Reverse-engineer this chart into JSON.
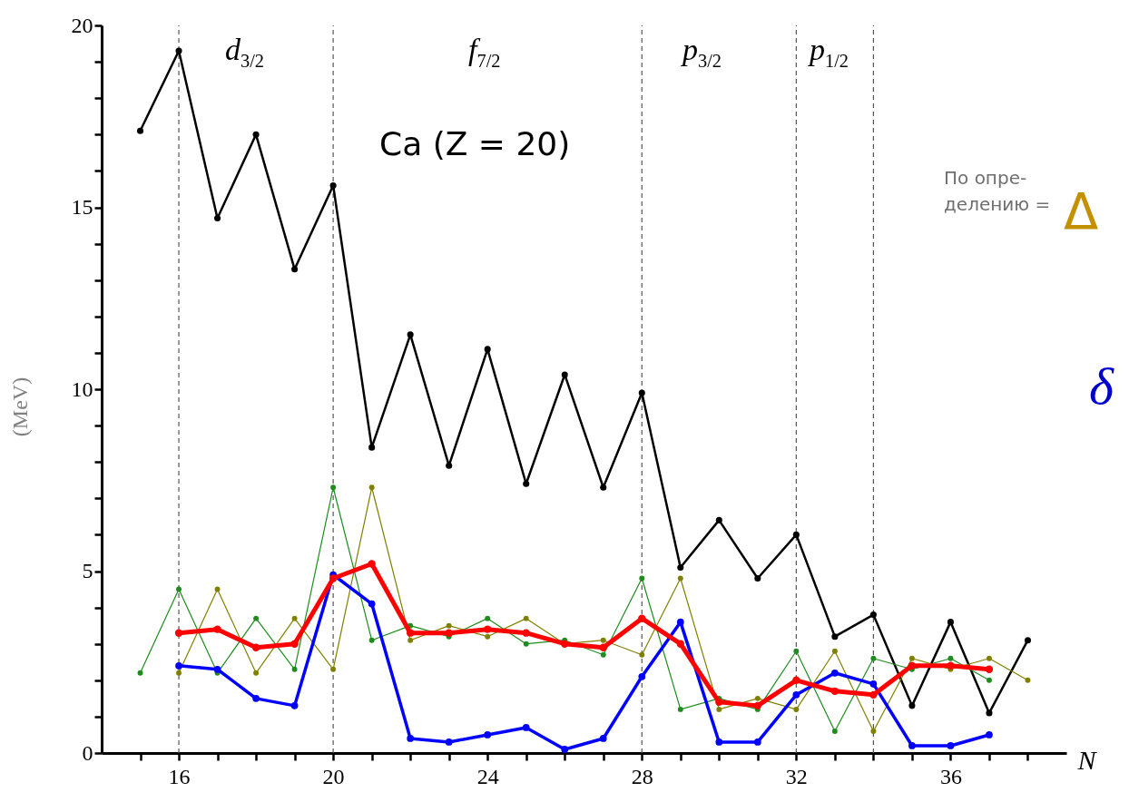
{
  "chart_data": {
    "type": "line",
    "xlabel": "N",
    "ylabel": "(MeV)",
    "xlim": [
      14,
      39
    ],
    "xticks": [
      {
        "value": 15,
        "label": null
      },
      16,
      {
        "value": 17,
        "label": null
      },
      {
        "value": 18,
        "label": null
      },
      {
        "value": 19,
        "label": null
      },
      20,
      {
        "value": 21,
        "label": null
      },
      {
        "value": 22,
        "label": null
      },
      {
        "value": 23,
        "label": null
      },
      24,
      {
        "value": 25,
        "label": null
      },
      {
        "value": 26,
        "label": null
      },
      {
        "value": 27,
        "label": null
      },
      28,
      {
        "value": 29,
        "label": null
      },
      {
        "value": 30,
        "label": null
      },
      {
        "value": 31,
        "label": null
      },
      32,
      {
        "value": 33,
        "label": null
      },
      {
        "value": 34,
        "label": null
      },
      {
        "value": 35,
        "label": null
      },
      36,
      {
        "value": 37,
        "label": null
      },
      {
        "value": 38,
        "label": null
      }
    ],
    "ylim": [
      0,
      20
    ],
    "yticks": [
      0,
      {
        "value": 1,
        "label": null
      },
      {
        "value": 2,
        "label": null
      },
      {
        "value": 3,
        "label": null
      },
      {
        "value": 4,
        "label": null
      },
      5,
      {
        "value": 6,
        "label": null
      },
      {
        "value": 7,
        "label": null
      },
      {
        "value": 8,
        "label": null
      },
      {
        "value": 9,
        "label": null
      },
      10,
      {
        "value": 11,
        "label": null
      },
      {
        "value": 12,
        "label": null
      },
      {
        "value": 13,
        "label": null
      },
      {
        "value": 14,
        "label": null
      },
      15,
      {
        "value": 16,
        "label": null
      },
      {
        "value": 17,
        "label": null
      },
      {
        "value": 18,
        "label": null
      },
      {
        "value": 19,
        "label": null
      },
      20
    ],
    "grid": false,
    "marker": "circle",
    "line_style": "solid",
    "series": [
      {
        "color": "#000000",
        "x": [
          15,
          16,
          17,
          18,
          19,
          20,
          21,
          22,
          23,
          24,
          25,
          26,
          27,
          28,
          29,
          30,
          31,
          32,
          33,
          34,
          35,
          36,
          37,
          38
        ],
        "values": [
          17.1,
          19.3,
          14.7,
          17.0,
          13.3,
          15.6,
          8.4,
          11.5,
          7.9,
          11.1,
          7.4,
          10.4,
          7.3,
          9.9,
          5.1,
          6.4,
          4.8,
          6.0,
          3.2,
          3.8,
          1.3,
          3.6,
          1.1,
          3.1
        ]
      },
      {
        "color": "#1e8c1e",
        "x": [
          15,
          16,
          17,
          18,
          19,
          20,
          21,
          22,
          23,
          24,
          25,
          26,
          27,
          28,
          29,
          30,
          31,
          32,
          33,
          34,
          35,
          36,
          37
        ],
        "values": [
          2.2,
          4.5,
          2.2,
          3.7,
          2.3,
          7.3,
          3.1,
          3.5,
          3.2,
          3.7,
          3.0,
          3.1,
          2.7,
          4.8,
          1.2,
          1.5,
          1.2,
          2.8,
          0.6,
          2.6,
          2.3,
          2.6,
          2.0
        ]
      },
      {
        "color": "#808000",
        "x": [
          16,
          17,
          18,
          19,
          20,
          21,
          22,
          23,
          24,
          25,
          26,
          27,
          28,
          29,
          30,
          31,
          32,
          33,
          34,
          35,
          36,
          37,
          38
        ],
        "values": [
          2.2,
          4.5,
          2.2,
          3.7,
          2.3,
          7.3,
          3.1,
          3.5,
          3.2,
          3.7,
          3.0,
          3.1,
          2.7,
          4.8,
          1.2,
          1.5,
          1.2,
          2.8,
          0.6,
          2.6,
          2.3,
          2.6,
          2.0
        ]
      },
      {
        "color": "#0000ff",
        "x": [
          16,
          17,
          18,
          19,
          20,
          21,
          22,
          23,
          24,
          25,
          26,
          27,
          28,
          29,
          30,
          31,
          32,
          33,
          34,
          35,
          36,
          37
        ],
        "values": [
          2.4,
          2.3,
          1.5,
          1.3,
          4.9,
          4.1,
          0.4,
          0.3,
          0.5,
          0.7,
          0.1,
          0.4,
          2.1,
          3.6,
          0.3,
          0.3,
          1.6,
          2.2,
          1.9,
          0.2,
          0.2,
          0.5
        ]
      },
      {
        "color": "#ff0000",
        "x": [
          16,
          17,
          18,
          19,
          20,
          21,
          22,
          23,
          24,
          25,
          26,
          27,
          28,
          29,
          30,
          31,
          32,
          33,
          34,
          35,
          36,
          37
        ],
        "values": [
          3.3,
          3.4,
          2.9,
          3.0,
          4.8,
          5.2,
          3.3,
          3.3,
          3.4,
          3.3,
          3.0,
          2.9,
          3.7,
          3.0,
          1.4,
          1.3,
          2.0,
          1.7,
          1.6,
          2.4,
          2.4,
          2.3
        ]
      }
    ],
    "ref_lines": [
      {
        "axis": "x",
        "value": 16,
        "color": "#555555",
        "line_style": "dashed"
      },
      {
        "axis": "x",
        "value": 20,
        "color": "#555555",
        "line_style": "dashed"
      },
      {
        "axis": "x",
        "value": 28,
        "color": "#555555",
        "line_style": "dashed"
      },
      {
        "axis": "x",
        "value": 32,
        "color": "#555555",
        "line_style": "dashed"
      },
      {
        "axis": "x",
        "value": 34,
        "color": "#555555",
        "line_style": "dashed"
      }
    ],
    "annotations": [
      "d$_{3/2}$",
      "f$_{7/2}$",
      "p$_{3/2}$",
      "p$_{1/2}$",
      "Ca (Z = 20)",
      "По опре-делению =",
      "Δ",
      "δ"
    ]
  }
}
